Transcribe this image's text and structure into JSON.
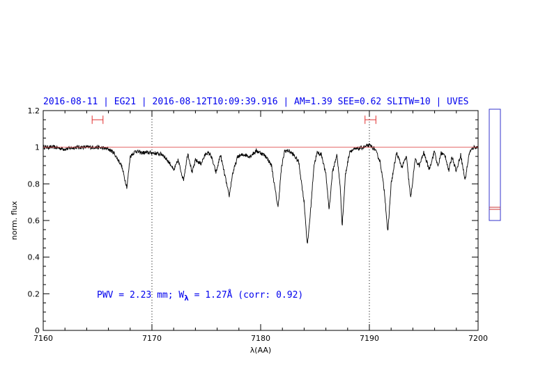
{
  "chart_data": {
    "type": "line",
    "title": "2016-08-11 | EG21 | 2016-08-12T10:09:39.916 | AM=1.39 SEE=0.62 SLITW=10 | UVES",
    "xlabel": "λ(AA)",
    "ylabel": "norm. flux",
    "xlim": [
      7160,
      7200
    ],
    "ylim": [
      0,
      1.2
    ],
    "x_ticks": [
      7160,
      7170,
      7180,
      7190,
      7200
    ],
    "x_tick_labels": [
      "7160",
      "7170",
      "7180",
      "7190",
      "7200"
    ],
    "y_ticks": [
      0,
      0.2,
      0.4,
      0.6,
      0.8,
      1,
      1.2
    ],
    "y_tick_labels": [
      "0",
      "0.2",
      "0.4",
      "0.6",
      "0.8",
      "1",
      "1.2"
    ],
    "grid": false,
    "reference_level": 1.0,
    "dotted_verticals": [
      7170,
      7190
    ],
    "continuum_windows": [
      {
        "x_range": [
          7164.5,
          7165.5
        ],
        "y": 1.15
      },
      {
        "x_range": [
          7189.6,
          7190.6
        ],
        "y": 1.15
      }
    ],
    "series": [
      {
        "color": "#000000",
        "x": [
          7160,
          7161,
          7162,
          7163,
          7164,
          7165,
          7166,
          7166.5,
          7167.2,
          7167.7,
          7168,
          7168.5,
          7169,
          7170,
          7171,
          7171.8,
          7172,
          7172.4,
          7172.9,
          7173.3,
          7173.7,
          7174,
          7174.5,
          7175,
          7175.4,
          7175.9,
          7176.3,
          7176.8,
          7177.1,
          7177.4,
          7177.9,
          7178.5,
          7179,
          7179.6,
          7180,
          7180.5,
          7181,
          7181.3,
          7181.6,
          7181.9,
          7182.2,
          7182.6,
          7183,
          7183.5,
          7184,
          7184.3,
          7184.6,
          7184.9,
          7185.2,
          7185.6,
          7186,
          7186.3,
          7186.6,
          7187,
          7187.3,
          7187.5,
          7187.8,
          7188.2,
          7188.8,
          7189.5,
          7190,
          7190.5,
          7191,
          7191.4,
          7191.7,
          7192,
          7192.5,
          7193,
          7193.4,
          7193.8,
          7194.2,
          7194.6,
          7195,
          7195.5,
          7196,
          7196.3,
          7196.6,
          7197,
          7197.3,
          7197.6,
          7198,
          7198.4,
          7198.8,
          7199.2,
          7199.6,
          7200
        ],
        "y": [
          1.0,
          1.0,
          0.99,
          1.0,
          1.0,
          1.0,
          0.99,
          0.97,
          0.9,
          0.78,
          0.95,
          0.98,
          0.97,
          0.97,
          0.96,
          0.9,
          0.87,
          0.93,
          0.82,
          0.97,
          0.86,
          0.93,
          0.91,
          0.97,
          0.96,
          0.86,
          0.96,
          0.82,
          0.73,
          0.85,
          0.95,
          0.96,
          0.95,
          0.98,
          0.97,
          0.95,
          0.9,
          0.78,
          0.67,
          0.88,
          0.98,
          0.98,
          0.96,
          0.92,
          0.7,
          0.46,
          0.66,
          0.9,
          0.97,
          0.96,
          0.85,
          0.66,
          0.86,
          0.96,
          0.8,
          0.57,
          0.85,
          0.98,
          0.99,
          1.0,
          1.01,
          0.99,
          0.92,
          0.75,
          0.53,
          0.8,
          0.97,
          0.89,
          0.95,
          0.72,
          0.93,
          0.9,
          0.97,
          0.88,
          0.98,
          0.89,
          0.97,
          0.95,
          0.87,
          0.95,
          0.87,
          0.96,
          0.82,
          0.97,
          1.0,
          1.0
        ]
      }
    ],
    "annotation": {
      "pwv_text": "PWV = 2.23 mm; W",
      "sub": "λ",
      "rest": " = 1.27Å (corr: 0.92)"
    }
  },
  "side_indicator": {
    "frame_color": "#3333cc",
    "marker_color": "#cc3333"
  }
}
